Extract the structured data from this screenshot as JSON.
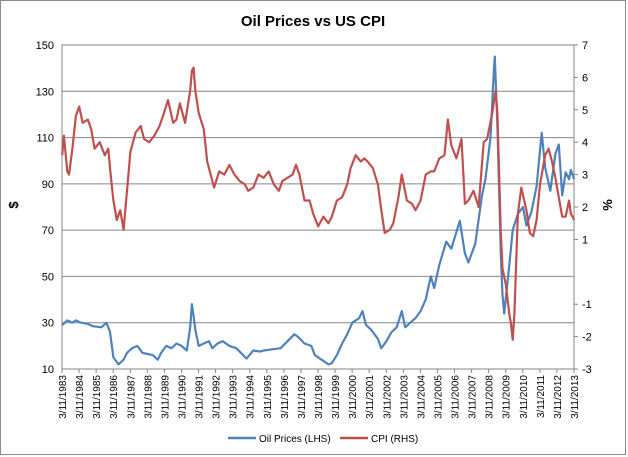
{
  "chart_data": {
    "type": "line",
    "title": "Oil Prices vs US CPI",
    "ylabel_left": "$",
    "ylabel_right": "%",
    "ylim_left": [
      10,
      150
    ],
    "ylim_right": [
      -3,
      7
    ],
    "yticks_left": [
      10,
      30,
      50,
      70,
      90,
      110,
      130,
      150
    ],
    "yticks_right": [
      -3,
      -2,
      -1,
      1,
      2,
      3,
      4,
      5,
      6,
      7
    ],
    "x_tick_labels": [
      "3/11/1983",
      "3/11/1984",
      "3/11/1985",
      "3/11/1986",
      "3/11/1987",
      "3/11/1988",
      "3/11/1989",
      "3/11/1990",
      "3/11/1991",
      "3/11/1992",
      "3/11/1993",
      "3/11/1994",
      "3/11/1995",
      "3/11/1996",
      "3/11/1997",
      "3/11/1998",
      "3/11/1999",
      "3/11/2000",
      "3/11/2001",
      "3/11/2002",
      "3/11/2003",
      "3/11/2004",
      "3/11/2005",
      "3/11/2006",
      "3/11/2007",
      "3/11/2008",
      "3/11/2009",
      "3/11/2010",
      "3/11/2011",
      "3/11/2012",
      "3/11/2013"
    ],
    "grid": "horizontal",
    "legend_position": "bottom",
    "series": [
      {
        "name": "Oil Prices (LHS)",
        "axis": "left",
        "color": "#4f81bd",
        "points": [
          [
            1983.2,
            29
          ],
          [
            1983.5,
            31
          ],
          [
            1983.8,
            30
          ],
          [
            1984.0,
            31
          ],
          [
            1984.3,
            30
          ],
          [
            1984.7,
            29.5
          ],
          [
            1985.0,
            28.5
          ],
          [
            1985.5,
            28
          ],
          [
            1985.8,
            30
          ],
          [
            1986.0,
            26
          ],
          [
            1986.2,
            15
          ],
          [
            1986.5,
            12
          ],
          [
            1986.8,
            14
          ],
          [
            1987.0,
            17
          ],
          [
            1987.3,
            19
          ],
          [
            1987.6,
            20
          ],
          [
            1987.9,
            17
          ],
          [
            1988.2,
            16.5
          ],
          [
            1988.5,
            16
          ],
          [
            1988.8,
            14
          ],
          [
            1989.0,
            17
          ],
          [
            1989.3,
            20
          ],
          [
            1989.6,
            19
          ],
          [
            1989.9,
            21
          ],
          [
            1990.2,
            20
          ],
          [
            1990.5,
            18
          ],
          [
            1990.7,
            28
          ],
          [
            1990.8,
            38
          ],
          [
            1990.9,
            33
          ],
          [
            1991.0,
            27
          ],
          [
            1991.2,
            20
          ],
          [
            1991.5,
            21
          ],
          [
            1991.8,
            22
          ],
          [
            1992.0,
            19
          ],
          [
            1992.3,
            21
          ],
          [
            1992.6,
            22
          ],
          [
            1993.0,
            20
          ],
          [
            1993.4,
            19
          ],
          [
            1993.8,
            16
          ],
          [
            1994.0,
            14.5
          ],
          [
            1994.4,
            18
          ],
          [
            1994.8,
            17.5
          ],
          [
            1995.0,
            18
          ],
          [
            1995.5,
            18.5
          ],
          [
            1996.0,
            19
          ],
          [
            1996.4,
            22
          ],
          [
            1996.8,
            25
          ],
          [
            1997.0,
            24
          ],
          [
            1997.4,
            21
          ],
          [
            1997.8,
            20
          ],
          [
            1998.0,
            16
          ],
          [
            1998.4,
            14
          ],
          [
            1998.8,
            12
          ],
          [
            1999.0,
            12.5
          ],
          [
            1999.3,
            16
          ],
          [
            1999.6,
            21
          ],
          [
            1999.9,
            25
          ],
          [
            2000.2,
            30
          ],
          [
            2000.6,
            32
          ],
          [
            2000.8,
            35
          ],
          [
            2001.0,
            29
          ],
          [
            2001.3,
            27
          ],
          [
            2001.7,
            23
          ],
          [
            2001.9,
            19
          ],
          [
            2002.2,
            22
          ],
          [
            2002.5,
            26
          ],
          [
            2002.8,
            28
          ],
          [
            2003.1,
            35
          ],
          [
            2003.3,
            28
          ],
          [
            2003.6,
            30
          ],
          [
            2003.9,
            32
          ],
          [
            2004.2,
            35
          ],
          [
            2004.5,
            40
          ],
          [
            2004.8,
            50
          ],
          [
            2005.0,
            45
          ],
          [
            2005.3,
            55
          ],
          [
            2005.7,
            65
          ],
          [
            2006.0,
            62
          ],
          [
            2006.5,
            74
          ],
          [
            2006.8,
            60
          ],
          [
            2007.0,
            56
          ],
          [
            2007.4,
            64
          ],
          [
            2007.8,
            85
          ],
          [
            2008.0,
            92
          ],
          [
            2008.3,
            110
          ],
          [
            2008.5,
            140
          ],
          [
            2008.55,
            145
          ],
          [
            2008.7,
            115
          ],
          [
            2008.9,
            60
          ],
          [
            2009.0,
            42
          ],
          [
            2009.1,
            34
          ],
          [
            2009.4,
            55
          ],
          [
            2009.6,
            70
          ],
          [
            2009.9,
            77
          ],
          [
            2010.2,
            80
          ],
          [
            2010.4,
            72
          ],
          [
            2010.7,
            78
          ],
          [
            2011.0,
            89
          ],
          [
            2011.3,
            112
          ],
          [
            2011.5,
            97
          ],
          [
            2011.8,
            87
          ],
          [
            2012.1,
            103
          ],
          [
            2012.3,
            107
          ],
          [
            2012.5,
            85
          ],
          [
            2012.7,
            95
          ],
          [
            2012.9,
            92
          ],
          [
            2013.0,
            96
          ],
          [
            2013.2,
            92
          ]
        ]
      },
      {
        "name": "CPI (RHS)",
        "axis": "right",
        "color": "#c0504d",
        "points": [
          [
            1983.2,
            3.6
          ],
          [
            1983.3,
            4.2
          ],
          [
            1983.5,
            3.1
          ],
          [
            1983.6,
            3.0
          ],
          [
            1983.8,
            3.8
          ],
          [
            1984.0,
            4.8
          ],
          [
            1984.2,
            5.1
          ],
          [
            1984.4,
            4.6
          ],
          [
            1984.7,
            4.7
          ],
          [
            1984.9,
            4.4
          ],
          [
            1985.1,
            3.8
          ],
          [
            1985.4,
            4.0
          ],
          [
            1985.7,
            3.6
          ],
          [
            1985.9,
            3.8
          ],
          [
            1986.0,
            3.2
          ],
          [
            1986.2,
            2.2
          ],
          [
            1986.4,
            1.6
          ],
          [
            1986.6,
            1.9
          ],
          [
            1986.8,
            1.3
          ],
          [
            1987.0,
            2.5
          ],
          [
            1987.2,
            3.7
          ],
          [
            1987.5,
            4.3
          ],
          [
            1987.8,
            4.5
          ],
          [
            1988.0,
            4.1
          ],
          [
            1988.3,
            4.0
          ],
          [
            1988.6,
            4.2
          ],
          [
            1988.9,
            4.5
          ],
          [
            1989.1,
            4.8
          ],
          [
            1989.4,
            5.3
          ],
          [
            1989.7,
            4.6
          ],
          [
            1989.9,
            4.7
          ],
          [
            1990.1,
            5.2
          ],
          [
            1990.4,
            4.6
          ],
          [
            1990.7,
            5.6
          ],
          [
            1990.8,
            6.2
          ],
          [
            1990.9,
            6.3
          ],
          [
            1991.0,
            5.6
          ],
          [
            1991.2,
            4.9
          ],
          [
            1991.5,
            4.4
          ],
          [
            1991.7,
            3.4
          ],
          [
            1991.9,
            3.0
          ],
          [
            1992.1,
            2.6
          ],
          [
            1992.4,
            3.1
          ],
          [
            1992.7,
            3.0
          ],
          [
            1993.0,
            3.3
          ],
          [
            1993.3,
            3.0
          ],
          [
            1993.6,
            2.8
          ],
          [
            1993.9,
            2.7
          ],
          [
            1994.1,
            2.5
          ],
          [
            1994.4,
            2.6
          ],
          [
            1994.7,
            3.0
          ],
          [
            1995.0,
            2.9
          ],
          [
            1995.3,
            3.1
          ],
          [
            1995.6,
            2.7
          ],
          [
            1995.9,
            2.5
          ],
          [
            1996.1,
            2.8
          ],
          [
            1996.4,
            2.9
          ],
          [
            1996.7,
            3.0
          ],
          [
            1996.9,
            3.3
          ],
          [
            1997.1,
            3.0
          ],
          [
            1997.4,
            2.2
          ],
          [
            1997.7,
            2.2
          ],
          [
            1997.9,
            1.8
          ],
          [
            1998.2,
            1.4
          ],
          [
            1998.5,
            1.7
          ],
          [
            1998.8,
            1.5
          ],
          [
            1999.0,
            1.7
          ],
          [
            1999.3,
            2.2
          ],
          [
            1999.6,
            2.3
          ],
          [
            1999.9,
            2.7
          ],
          [
            2000.1,
            3.2
          ],
          [
            2000.4,
            3.6
          ],
          [
            2000.7,
            3.4
          ],
          [
            2000.9,
            3.5
          ],
          [
            2001.1,
            3.4
          ],
          [
            2001.4,
            3.2
          ],
          [
            2001.7,
            2.7
          ],
          [
            2001.9,
            1.9
          ],
          [
            2002.1,
            1.2
          ],
          [
            2002.4,
            1.3
          ],
          [
            2002.6,
            1.5
          ],
          [
            2002.9,
            2.3
          ],
          [
            2003.1,
            3.0
          ],
          [
            2003.4,
            2.2
          ],
          [
            2003.7,
            2.1
          ],
          [
            2003.9,
            1.9
          ],
          [
            2004.2,
            2.2
          ],
          [
            2004.5,
            3.0
          ],
          [
            2004.8,
            3.1
          ],
          [
            2005.0,
            3.1
          ],
          [
            2005.3,
            3.5
          ],
          [
            2005.6,
            3.6
          ],
          [
            2005.8,
            4.7
          ],
          [
            2006.0,
            3.9
          ],
          [
            2006.3,
            3.5
          ],
          [
            2006.6,
            4.1
          ],
          [
            2006.8,
            2.1
          ],
          [
            2007.0,
            2.2
          ],
          [
            2007.3,
            2.5
          ],
          [
            2007.6,
            2.0
          ],
          [
            2007.9,
            4.0
          ],
          [
            2008.1,
            4.1
          ],
          [
            2008.4,
            4.9
          ],
          [
            2008.6,
            5.6
          ],
          [
            2008.7,
            4.9
          ],
          [
            2008.9,
            1.2
          ],
          [
            2009.0,
            0.1
          ],
          [
            2009.2,
            -0.4
          ],
          [
            2009.4,
            -1.3
          ],
          [
            2009.5,
            -1.6
          ],
          [
            2009.6,
            -2.1
          ],
          [
            2009.7,
            -1.3
          ],
          [
            2009.9,
            1.8
          ],
          [
            2010.1,
            2.6
          ],
          [
            2010.4,
            1.9
          ],
          [
            2010.6,
            1.2
          ],
          [
            2010.8,
            1.1
          ],
          [
            2011.0,
            1.6
          ],
          [
            2011.2,
            2.7
          ],
          [
            2011.5,
            3.6
          ],
          [
            2011.7,
            3.8
          ],
          [
            2011.9,
            3.4
          ],
          [
            2012.1,
            2.9
          ],
          [
            2012.3,
            2.3
          ],
          [
            2012.5,
            1.7
          ],
          [
            2012.7,
            1.7
          ],
          [
            2012.9,
            2.2
          ],
          [
            2013.0,
            1.8
          ],
          [
            2013.2,
            1.6
          ]
        ]
      }
    ]
  }
}
